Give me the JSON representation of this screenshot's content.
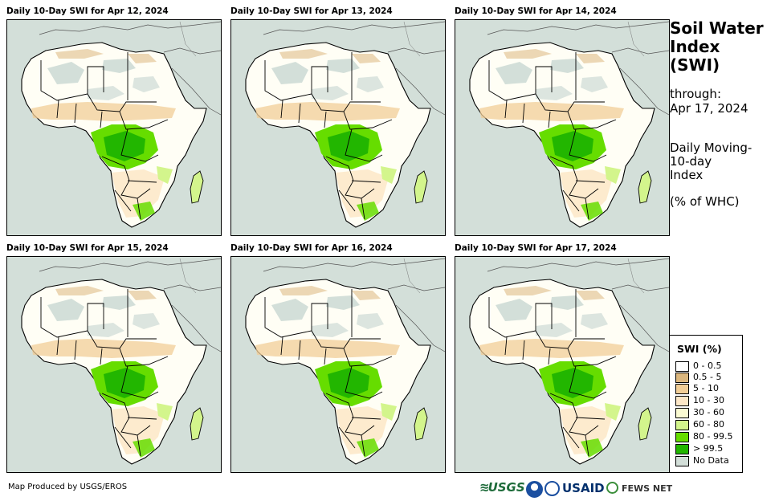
{
  "panels": [
    {
      "title": "Daily 10-Day SWI for Apr 12, 2024"
    },
    {
      "title": "Daily 10-Day SWI for Apr 13, 2024"
    },
    {
      "title": "Daily 10-Day SWI for Apr 14, 2024"
    },
    {
      "title": "Daily 10-Day SWI for Apr 15, 2024"
    },
    {
      "title": "Daily 10-Day SWI for Apr 16, 2024"
    },
    {
      "title": "Daily 10-Day SWI for Apr 17, 2024"
    }
  ],
  "sidebar": {
    "title_line1": "Soil Water",
    "title_line2": "Index",
    "title_line3": "(SWI)",
    "through_label": "through:",
    "through_date": "Apr 17, 2024",
    "desc_line1": "Daily Moving-",
    "desc_line2": "10-day",
    "desc_line3": "Index",
    "units": "(% of WHC)"
  },
  "legend": {
    "title": "SWI (%)",
    "items": [
      {
        "label": "0 - 0.5",
        "color": "#ffffff"
      },
      {
        "label": "0.5 - 5",
        "color": "#dcb77e"
      },
      {
        "label": "5 - 10",
        "color": "#f2ce97"
      },
      {
        "label": "10 - 30",
        "color": "#fde7c7"
      },
      {
        "label": "30 - 60",
        "color": "#fbfbd2"
      },
      {
        "label": "60 - 80",
        "color": "#d3f58c"
      },
      {
        "label": "80 - 99.5",
        "color": "#66dd00"
      },
      {
        "label": "> 99.5",
        "color": "#22b600"
      },
      {
        "label": "No Data",
        "color": "#d3dfd9"
      }
    ]
  },
  "footer": {
    "credit": "Map Produced by USGS/EROS",
    "logos": {
      "usgs": "USGS",
      "usaid": "USAID",
      "fewsnet": "FEWS NET"
    }
  }
}
